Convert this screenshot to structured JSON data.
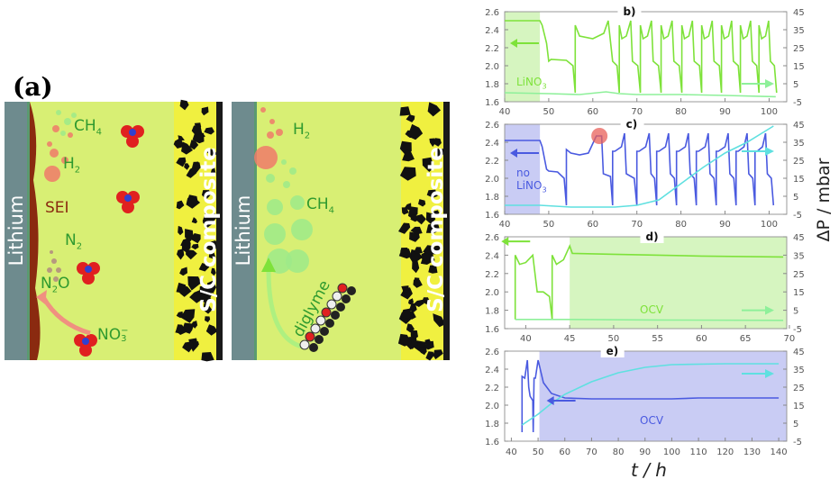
{
  "figure_label": "(a)",
  "schematic": {
    "left": {
      "electrode": "Lithium",
      "cathode": "S/C composite",
      "labels": {
        "ch4": "CH",
        "ch4_sub": "4",
        "h2": "H",
        "h2_sub": "2",
        "sei": "SEI",
        "n2": "N",
        "n2_sub": "2",
        "n2o": "N",
        "n2o_sub": "2",
        "n2o_end": "O",
        "no3": "NO",
        "no3_sub": "3",
        "no3_sup": "−"
      }
    },
    "right": {
      "electrode": "Lithium",
      "cathode": "S/C composite",
      "labels": {
        "h2": "H",
        "h2_sub": "2",
        "ch4": "CH",
        "ch4_sub": "4",
        "diglyme": "diglyme"
      }
    },
    "colors": {
      "electrolyte": "#d8ef74",
      "lithium": "#6e8b8e",
      "sei": "#8a2a10",
      "composite": "#111111",
      "h2": "#f07a6a",
      "ch4": "#9eea8a",
      "nitrate_o": "#e02020",
      "nitrate_n": "#3040d0"
    }
  },
  "axes": {
    "xlabel": "t / h",
    "right_ylabel": "ΔP / mbar"
  },
  "chart_data": [
    {
      "panel": "b)",
      "type": "line",
      "xlim": [
        40,
        104
      ],
      "ylim": [
        1.6,
        2.6
      ],
      "y2lim": [
        -5,
        45
      ],
      "xticks": [
        40,
        50,
        60,
        70,
        80,
        90,
        100
      ],
      "yticks": [
        "1.6",
        "1.8",
        "2.0",
        "2.2",
        "2.4",
        "2.6"
      ],
      "y2ticks": [
        "-5",
        "5",
        "15",
        "25",
        "35",
        "45"
      ],
      "shade": {
        "from": 40,
        "to": 48,
        "color": "#d6f5c0"
      },
      "annotation": {
        "main": "LiNO",
        "sub": "3"
      },
      "series": [
        {
          "axis": "left",
          "color": "#7ee23a",
          "points": [
            [
              40,
              2.5
            ],
            [
              48,
              2.5
            ],
            [
              48.5,
              2.45
            ],
            [
              49.5,
              2.25
            ],
            [
              50,
              2.05
            ],
            [
              50.5,
              2.07
            ],
            [
              54,
              2.06
            ],
            [
              55.5,
              2.0
            ],
            [
              56,
              1.7
            ],
            [
              56,
              2.45
            ],
            [
              57,
              2.33
            ],
            [
              60,
              2.3
            ],
            [
              62.5,
              2.36
            ],
            [
              63.5,
              2.5
            ],
            [
              64.5,
              2.05
            ],
            [
              65.5,
              2.0
            ],
            [
              66,
              1.7
            ],
            [
              66,
              2.45
            ],
            [
              66.6,
              2.3
            ],
            [
              67.6,
              2.33
            ],
            [
              68.6,
              2.5
            ],
            [
              69,
              2.05
            ],
            [
              70.2,
              2.0
            ],
            [
              70.8,
              1.7
            ],
            [
              70.8,
              2.45
            ],
            [
              71.4,
              2.3
            ],
            [
              72.4,
              2.33
            ],
            [
              73.3,
              2.5
            ],
            [
              73.7,
              2.05
            ],
            [
              74.9,
              2.0
            ],
            [
              75.5,
              1.7
            ],
            [
              75.5,
              2.45
            ],
            [
              76.1,
              2.3
            ],
            [
              77.1,
              2.33
            ],
            [
              78,
              2.5
            ],
            [
              78.4,
              2.05
            ],
            [
              79.6,
              2.0
            ],
            [
              80.2,
              1.7
            ],
            [
              80.2,
              2.45
            ],
            [
              80.8,
              2.3
            ],
            [
              81.8,
              2.33
            ],
            [
              82.6,
              2.5
            ],
            [
              83,
              2.05
            ],
            [
              84.2,
              2.0
            ],
            [
              84.7,
              1.7
            ],
            [
              84.7,
              2.45
            ],
            [
              85.3,
              2.3
            ],
            [
              86.3,
              2.33
            ],
            [
              87.1,
              2.5
            ],
            [
              87.5,
              2.05
            ],
            [
              88.7,
              2.0
            ],
            [
              89.2,
              1.7
            ],
            [
              89.2,
              2.45
            ],
            [
              89.8,
              2.3
            ],
            [
              90.8,
              2.33
            ],
            [
              91.5,
              2.5
            ],
            [
              91.9,
              2.05
            ],
            [
              93,
              2.0
            ],
            [
              93.5,
              1.7
            ],
            [
              93.5,
              2.45
            ],
            [
              94.1,
              2.3
            ],
            [
              95,
              2.33
            ],
            [
              95.8,
              2.5
            ],
            [
              96.2,
              2.05
            ],
            [
              97.2,
              2.0
            ],
            [
              97.7,
              1.7
            ],
            [
              97.7,
              2.45
            ],
            [
              98.3,
              2.3
            ],
            [
              99.2,
              2.33
            ],
            [
              99.9,
              2.5
            ],
            [
              100.3,
              2.05
            ],
            [
              101.2,
              2.0
            ],
            [
              101.7,
              1.7
            ]
          ]
        },
        {
          "axis": "right",
          "color": "#8ef09a",
          "points": [
            [
              40,
              0
            ],
            [
              50,
              -0.5
            ],
            [
              57,
              -1
            ],
            [
              63,
              0.5
            ],
            [
              66,
              -0.5
            ],
            [
              70,
              -1
            ],
            [
              80,
              -1
            ],
            [
              90,
              -1.5
            ],
            [
              101.5,
              -2.2
            ]
          ]
        }
      ]
    },
    {
      "panel": "c)",
      "type": "line",
      "xlim": [
        40,
        104
      ],
      "ylim": [
        1.6,
        2.6
      ],
      "y2lim": [
        -5,
        45
      ],
      "xticks": [
        40,
        50,
        60,
        70,
        80,
        90,
        100
      ],
      "yticks": [
        "1.6",
        "1.8",
        "2.0",
        "2.2",
        "2.4",
        "2.6"
      ],
      "y2ticks": [
        "-5",
        "5",
        "15",
        "25",
        "35",
        "45"
      ],
      "shade": {
        "from": 40,
        "to": 48,
        "color": "#c9ccf4"
      },
      "annotation": {
        "main": "no",
        "line2": "LiNO",
        "sub": "3"
      },
      "highlight": {
        "x": 61.5,
        "y": 2.47,
        "color": "#e8605a"
      },
      "series": [
        {
          "axis": "left",
          "color": "#4a5ae0",
          "points": [
            [
              40,
              2.42
            ],
            [
              48,
              2.42
            ],
            [
              48.5,
              2.35
            ],
            [
              49.5,
              2.1
            ],
            [
              50,
              2.08
            ],
            [
              52,
              2.07
            ],
            [
              53.5,
              2.0
            ],
            [
              54,
              1.7
            ],
            [
              54,
              2.32
            ],
            [
              55,
              2.28
            ],
            [
              57,
              2.26
            ],
            [
              59,
              2.28
            ],
            [
              60.8,
              2.47
            ],
            [
              62,
              2.47
            ],
            [
              62.4,
              2.05
            ],
            [
              64,
              2.02
            ],
            [
              64.5,
              1.7
            ],
            [
              64.5,
              2.3
            ],
            [
              65,
              2.3
            ],
            [
              66.5,
              2.35
            ],
            [
              67.2,
              2.5
            ],
            [
              67.6,
              2.05
            ],
            [
              69.4,
              2.0
            ],
            [
              70,
              1.7
            ],
            [
              70,
              2.3
            ],
            [
              70.5,
              2.3
            ],
            [
              72,
              2.35
            ],
            [
              72.8,
              2.5
            ],
            [
              73.2,
              2.05
            ],
            [
              74,
              2.0
            ],
            [
              74.5,
              1.7
            ],
            [
              74.5,
              2.3
            ],
            [
              75,
              2.3
            ],
            [
              76.5,
              2.35
            ],
            [
              77.2,
              2.5
            ],
            [
              77.6,
              2.05
            ],
            [
              78.5,
              2.0
            ],
            [
              79,
              1.7
            ],
            [
              79,
              2.3
            ],
            [
              79.5,
              2.3
            ],
            [
              81,
              2.35
            ],
            [
              81.7,
              2.5
            ],
            [
              82.1,
              2.05
            ],
            [
              83,
              2.0
            ],
            [
              83.5,
              1.7
            ],
            [
              83.5,
              2.3
            ],
            [
              84,
              2.3
            ],
            [
              85.5,
              2.35
            ],
            [
              86.2,
              2.5
            ],
            [
              86.6,
              2.05
            ],
            [
              87.5,
              2.0
            ],
            [
              88,
              1.7
            ],
            [
              88,
              2.3
            ],
            [
              88.5,
              2.3
            ],
            [
              90,
              2.35
            ],
            [
              90.7,
              2.5
            ],
            [
              91.1,
              2.05
            ],
            [
              92,
              2.0
            ],
            [
              92.5,
              1.7
            ],
            [
              92.5,
              2.3
            ],
            [
              93,
              2.3
            ],
            [
              94.3,
              2.35
            ],
            [
              95,
              2.5
            ],
            [
              95.4,
              2.05
            ],
            [
              96.3,
              2.0
            ],
            [
              96.8,
              1.7
            ],
            [
              96.8,
              2.3
            ],
            [
              97.3,
              2.3
            ],
            [
              98.5,
              2.35
            ],
            [
              99.2,
              2.5
            ],
            [
              99.6,
              2.05
            ],
            [
              100.5,
              2.0
            ],
            [
              101,
              1.7
            ]
          ]
        },
        {
          "axis": "right",
          "color": "#5fe0e0",
          "points": [
            [
              40,
              0
            ],
            [
              48,
              0
            ],
            [
              55,
              -1
            ],
            [
              65,
              -1
            ],
            [
              70,
              0
            ],
            [
              75,
              3
            ],
            [
              80,
              12
            ],
            [
              85,
              21
            ],
            [
              90,
              29
            ],
            [
              95,
              35
            ],
            [
              101,
              44
            ]
          ]
        }
      ]
    },
    {
      "panel": "d)",
      "type": "line",
      "xlim": [
        37.6,
        69.7
      ],
      "ylim": [
        1.6,
        2.6
      ],
      "y2lim": [
        -5,
        45
      ],
      "xticks": [
        40,
        45,
        50,
        55,
        60,
        65,
        70
      ],
      "yticks": [
        "1.6",
        "1.8",
        "2.0",
        "2.2",
        "2.4",
        "2.6"
      ],
      "y2ticks": [
        "-5",
        "5",
        "15",
        "25",
        "35",
        "45"
      ],
      "shade": {
        "from": 45,
        "to": 69.7,
        "color": "#d6f5c0"
      },
      "annotation": {
        "main": "OCV"
      },
      "series": [
        {
          "axis": "left",
          "color": "#7ee23a",
          "points": [
            [
              38.8,
              1.7
            ],
            [
              38.8,
              2.4
            ],
            [
              39.3,
              2.3
            ],
            [
              40,
              2.32
            ],
            [
              40.8,
              2.4
            ],
            [
              41.3,
              2.0
            ],
            [
              42,
              2.0
            ],
            [
              42.7,
              1.95
            ],
            [
              43,
              1.7
            ],
            [
              43,
              2.4
            ],
            [
              43.5,
              2.3
            ],
            [
              44.3,
              2.35
            ],
            [
              45,
              2.5
            ],
            [
              45.3,
              2.42
            ],
            [
              50,
              2.41
            ],
            [
              60,
              2.39
            ],
            [
              69.3,
              2.38
            ]
          ]
        },
        {
          "axis": "right",
          "color": "#8ef09a",
          "points": [
            [
              38.8,
              0
            ],
            [
              45,
              0
            ],
            [
              55,
              -0.3
            ],
            [
              69.3,
              -0.5
            ]
          ]
        }
      ]
    },
    {
      "panel": "e)",
      "type": "line",
      "xlim": [
        37.5,
        143
      ],
      "ylim": [
        1.6,
        2.6
      ],
      "y2lim": [
        -5,
        45
      ],
      "xticks": [
        40,
        50,
        60,
        70,
        80,
        90,
        100,
        110,
        120,
        130,
        140
      ],
      "yticks": [
        "1.6",
        "1.8",
        "2.0",
        "2.2",
        "2.4",
        "2.6"
      ],
      "y2ticks": [
        "-5",
        "5",
        "15",
        "25",
        "35",
        "45"
      ],
      "shade": {
        "from": 50.5,
        "to": 143,
        "color": "#c9ccf4"
      },
      "annotation": {
        "main": "OCV"
      },
      "series": [
        {
          "axis": "left",
          "color": "#4a5ae0",
          "points": [
            [
              44,
              1.7
            ],
            [
              44,
              2.32
            ],
            [
              45,
              2.3
            ],
            [
              46,
              2.5
            ],
            [
              46.5,
              2.2
            ],
            [
              47,
              2.1
            ],
            [
              48,
              2.05
            ],
            [
              48.2,
              1.7
            ],
            [
              48.5,
              2.3
            ],
            [
              49,
              2.3
            ],
            [
              50,
              2.5
            ],
            [
              52,
              2.25
            ],
            [
              55,
              2.13
            ],
            [
              60,
              2.08
            ],
            [
              70,
              2.07
            ],
            [
              100,
              2.07
            ],
            [
              110,
              2.08
            ],
            [
              140,
              2.08
            ]
          ]
        },
        {
          "axis": "right",
          "color": "#5fe0e0",
          "points": [
            [
              44,
              4
            ],
            [
              50,
              10
            ],
            [
              55,
              16
            ],
            [
              60,
              21
            ],
            [
              70,
              28
            ],
            [
              80,
              33
            ],
            [
              90,
              36
            ],
            [
              100,
              37.5
            ],
            [
              120,
              38
            ],
            [
              140,
              38
            ]
          ]
        }
      ]
    }
  ]
}
